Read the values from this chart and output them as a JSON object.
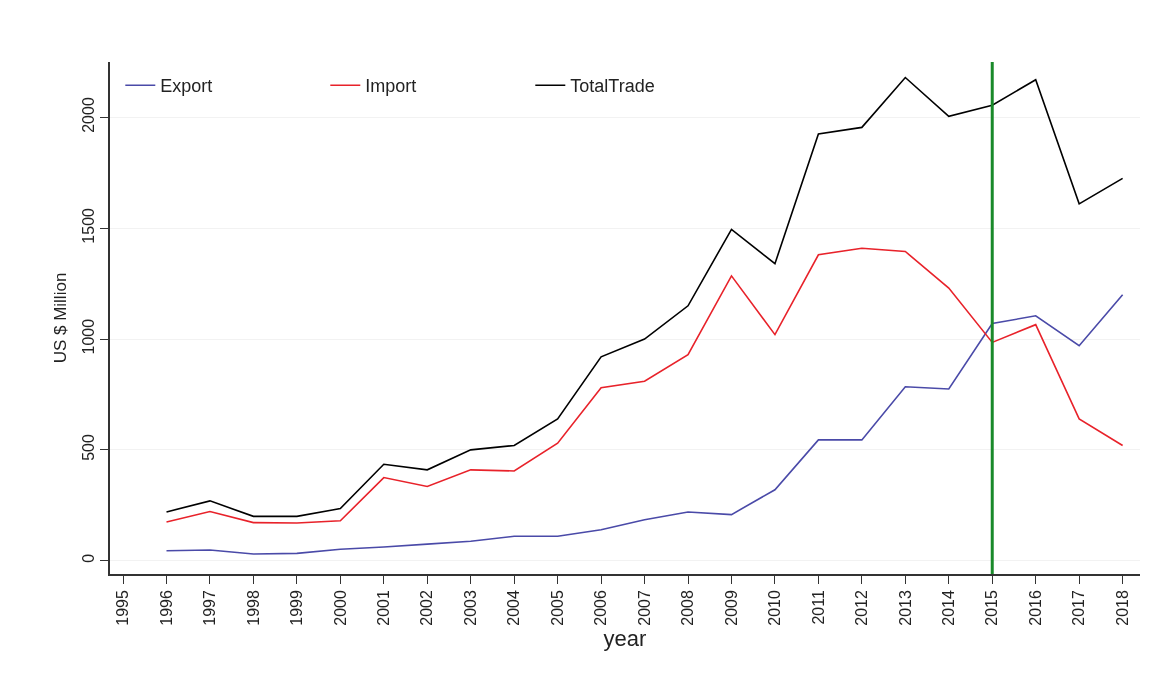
{
  "chart_data": {
    "type": "line",
    "xlabel": "year",
    "ylabel": "US $ Million",
    "x": [
      1996,
      1997,
      1998,
      1999,
      2000,
      2001,
      2002,
      2003,
      2004,
      2005,
      2006,
      2007,
      2008,
      2009,
      2010,
      2011,
      2012,
      2013,
      2014,
      2015,
      2016,
      2017,
      2018
    ],
    "series": [
      {
        "name": "Export",
        "color": "#4a4aa8",
        "values": [
          45,
          48,
          30,
          33,
          52,
          62,
          75,
          88,
          110,
          110,
          140,
          185,
          220,
          208,
          320,
          545,
          545,
          785,
          775,
          1070,
          1105,
          970,
          1200
        ]
      },
      {
        "name": "Import",
        "color": "#e8222a",
        "values": [
          175,
          222,
          172,
          170,
          180,
          375,
          335,
          410,
          405,
          530,
          780,
          810,
          930,
          1285,
          1020,
          1380,
          1410,
          1395,
          1230,
          985,
          1065,
          640,
          520
        ]
      },
      {
        "name": "TotalTrade",
        "color": "#000000",
        "values": [
          220,
          270,
          200,
          200,
          235,
          435,
          410,
          500,
          520,
          640,
          920,
          1000,
          1150,
          1495,
          1340,
          1925,
          1955,
          2180,
          2005,
          2055,
          2170,
          1610,
          1725
        ]
      }
    ],
    "xlim": [
      1994.7,
      2018.4
    ],
    "xticks": [
      1995,
      1996,
      1997,
      1998,
      1999,
      2000,
      2001,
      2002,
      2003,
      2004,
      2005,
      2006,
      2007,
      2008,
      2009,
      2010,
      2011,
      2012,
      2013,
      2014,
      2015,
      2016,
      2017,
      2018
    ],
    "ylim": [
      -60,
      2250
    ],
    "yticks": [
      0,
      500,
      1000,
      1500,
      2000
    ],
    "ref_lines": [
      {
        "axis": "x",
        "value": 2015,
        "color": "#1a8a2a"
      }
    ],
    "grid": "y",
    "legend": "top",
    "marker": "none",
    "line_style": "solid"
  }
}
